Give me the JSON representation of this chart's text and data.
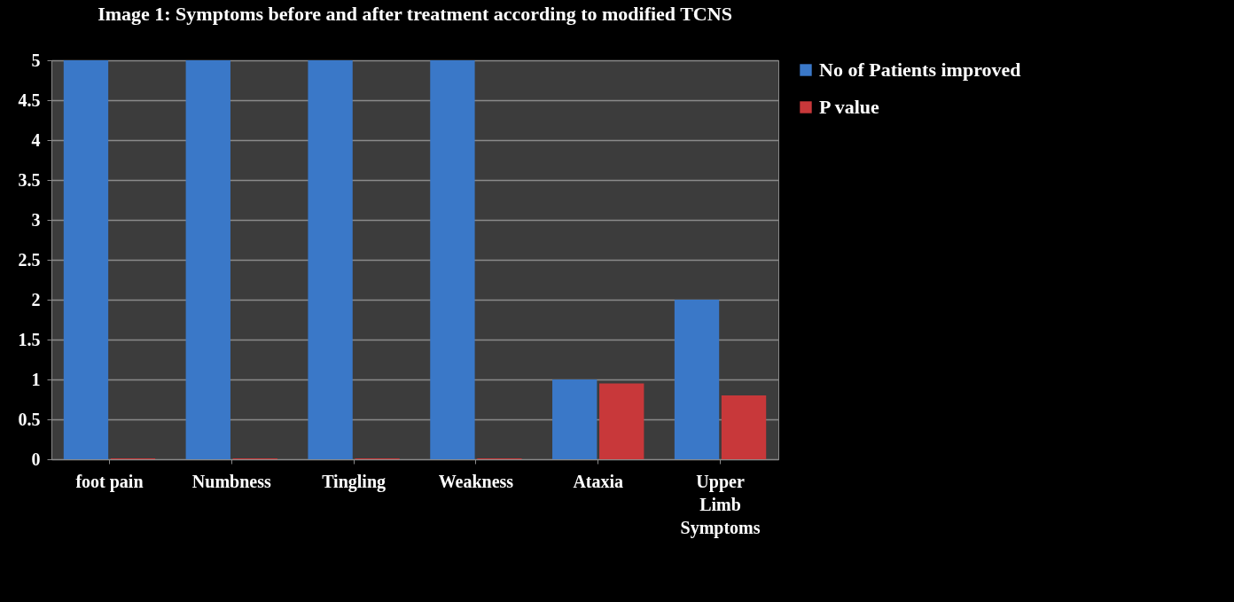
{
  "chart_data": {
    "type": "bar",
    "title": "Image 1: Symptoms before and after treatment according to modified TCNS",
    "categories": [
      "foot pain",
      "Numbness",
      "Tingling",
      "Weakness",
      "Ataxia",
      "Upper Limb Symptoms"
    ],
    "series": [
      {
        "name": "No of Patients improved",
        "color": "#3a78c8",
        "values": [
          5,
          5,
          5,
          5,
          1,
          2
        ]
      },
      {
        "name": "P value",
        "color": "#c8383a",
        "values": [
          0.01,
          0.01,
          0.01,
          0.01,
          0.95,
          0.8
        ]
      }
    ],
    "ylim": [
      0,
      5
    ],
    "yticks": [
      0,
      0.5,
      1,
      1.5,
      2,
      2.5,
      3,
      3.5,
      4,
      4.5,
      5
    ],
    "grid": "y",
    "legend": "right"
  }
}
